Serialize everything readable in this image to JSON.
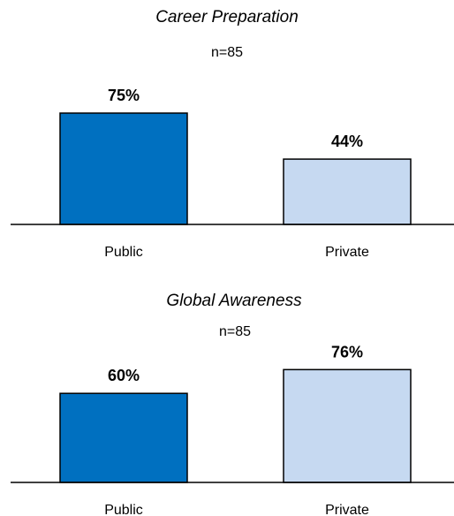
{
  "chart_data": [
    {
      "type": "bar",
      "title": "Career Preparation",
      "subtitle": "n=85",
      "categories": [
        "Public",
        "Private"
      ],
      "values": [
        75,
        44
      ],
      "data_labels": [
        "75%",
        "44%"
      ],
      "unit": "%",
      "ylim": [
        0,
        100
      ],
      "grid": false,
      "colors": [
        "#0070C0",
        "#C6D9F1"
      ],
      "edge_color": "#000000"
    },
    {
      "type": "bar",
      "title": "Global Awareness",
      "subtitle": "n=85",
      "categories": [
        "Public",
        "Private"
      ],
      "values": [
        60,
        76
      ],
      "data_labels": [
        "60%",
        "76%"
      ],
      "unit": "%",
      "ylim": [
        0,
        100
      ],
      "grid": false,
      "colors": [
        "#0070C0",
        "#C6D9F1"
      ],
      "edge_color": "#000000"
    }
  ]
}
